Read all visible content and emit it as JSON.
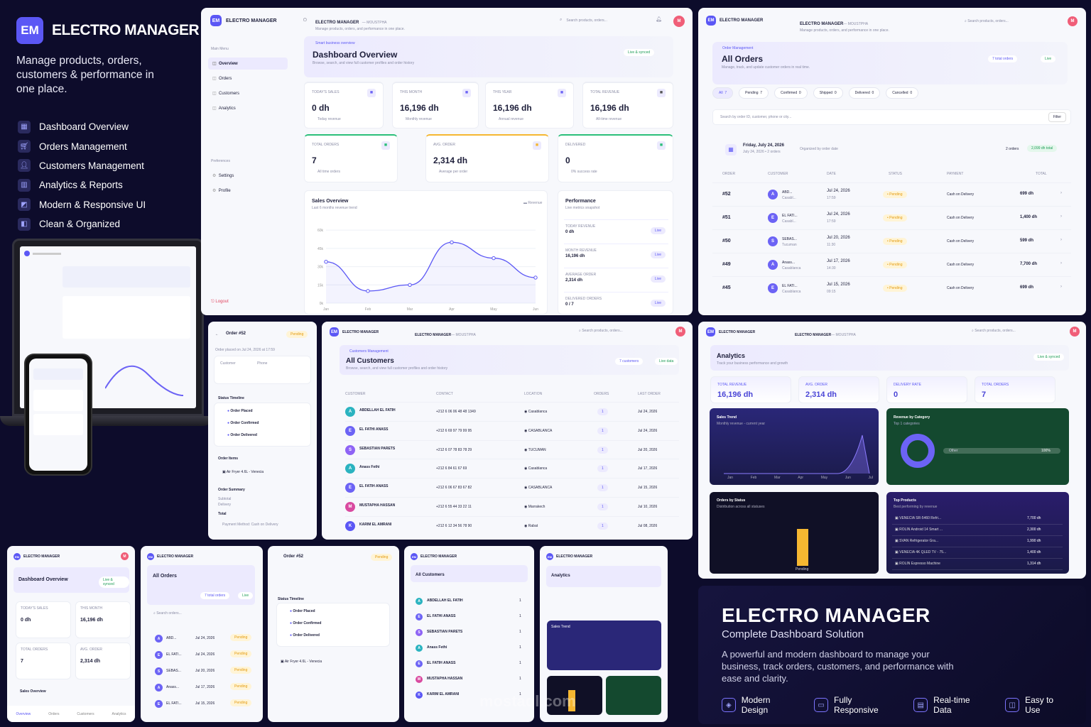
{
  "brand": {
    "logo": "EM",
    "name": "ELECTRO MANAGER",
    "tagline": "Manage products, orders, customers & performance in one place."
  },
  "features": [
    {
      "icon": "dashboard-icon",
      "label": "Dashboard Overview"
    },
    {
      "icon": "cart-icon",
      "label": "Orders Management"
    },
    {
      "icon": "users-icon",
      "label": "Customers Management"
    },
    {
      "icon": "chart-icon",
      "label": "Analytics & Reports"
    },
    {
      "icon": "monitor-icon",
      "label": "Modern & Responsive UI"
    },
    {
      "icon": "layers-icon",
      "label": "Clean & Organized"
    }
  ],
  "dashboard": {
    "app_name": "ELECTRO MANAGER",
    "user": "— MOUSTPHA",
    "subtitle": "Manage products, orders, and performance in one place.",
    "search_placeholder": "Search products, orders...",
    "avatar": "M",
    "nav_heading": "Main Menu",
    "nav": [
      "Overview",
      "Orders",
      "Customers",
      "Analytics"
    ],
    "pref_heading": "Preferences",
    "prefs": [
      "Settings",
      "Profile"
    ],
    "logout": "Logout",
    "banner_tag": "Smart business overview",
    "title": "Dashboard Overview",
    "desc": "Browse, search, and view full customer profiles and order history",
    "live": "Live & synced",
    "stats": [
      {
        "label": "TODAY'S SALES",
        "value": "0 dh",
        "sub": "Today revenue"
      },
      {
        "label": "THIS MONTH",
        "value": "16,196 dh",
        "sub": "Monthly revenue"
      },
      {
        "label": "THIS YEAR",
        "value": "16,196 dh",
        "sub": "Annual revenue"
      },
      {
        "label": "TOTAL REVENUE",
        "value": "16,196 dh",
        "sub": "All-time revenue"
      },
      {
        "label": "TOTAL ORDERS",
        "value": "7",
        "sub": "All time orders"
      },
      {
        "label": "AVG. ORDER",
        "value": "2,314 dh",
        "sub": "Average per order"
      },
      {
        "label": "DELIVERED",
        "value": "0",
        "sub": "0% success rate"
      }
    ],
    "performance": {
      "title": "Performance",
      "sub": "Live metrics snapshot",
      "items": [
        {
          "label": "TODAY REVENUE",
          "value": "0 dh"
        },
        {
          "label": "MONTH REVENUE",
          "value": "16,196 dh"
        },
        {
          "label": "AVERAGE ORDER",
          "value": "2,314 dh"
        },
        {
          "label": "DELIVERED ORDERS",
          "value": "0 / 7"
        }
      ],
      "badge": "Live"
    }
  },
  "chart_data": {
    "type": "line",
    "title": "Sales Overview",
    "subtitle": "Last 6 months revenue trend",
    "legend": "Revenue",
    "categories": [
      "Jan",
      "Feb",
      "Mar",
      "Apr",
      "May",
      "Jun"
    ],
    "values": [
      34,
      10,
      15,
      50,
      37,
      21
    ],
    "yticks": [
      "0k",
      "15k",
      "30k",
      "45k",
      "60k"
    ],
    "ylim": [
      0,
      70
    ]
  },
  "orders": {
    "tag": "Order Management",
    "title": "All Orders",
    "desc": "Manage, track, and update customer orders in real time.",
    "total_badge": "7 total orders",
    "live": "Live",
    "tabs": [
      {
        "label": "All",
        "count": "7"
      },
      {
        "label": "Pending",
        "count": "7"
      },
      {
        "label": "Confirmed",
        "count": "0"
      },
      {
        "label": "Shipped",
        "count": "0"
      },
      {
        "label": "Delivered",
        "count": "0"
      },
      {
        "label": "Cancelled",
        "count": "0"
      }
    ],
    "search_placeholder": "Search by order ID, customer, phone or city...",
    "filter": "Filter",
    "date": "Friday, July 24, 2026",
    "date_sub": "July 24, 2026 • 2 orders",
    "organized": "Organized by order date",
    "count": "2 orders",
    "total": "2,099 dh total",
    "headers": [
      "ORDER",
      "CUSTOMER",
      "DATE",
      "STATUS",
      "PAYMENT",
      "TOTAL"
    ],
    "rows": [
      {
        "id": "#52",
        "initial": "A",
        "name": "ABD...",
        "city": "Casabl...",
        "date": "Jul 24, 2026",
        "time": "17:59",
        "status": "Pending",
        "payment": "Cash on Delivery",
        "total": "699 dh"
      },
      {
        "id": "#51",
        "initial": "E",
        "name": "EL FATI...",
        "city": "Casabl...",
        "date": "Jul 24, 2026",
        "time": "17:59",
        "status": "Pending",
        "payment": "Cash on Delivery",
        "total": "1,400 dh"
      },
      {
        "id": "#50",
        "initial": "S",
        "name": "SEBAS...",
        "city": "Tucuman",
        "date": "Jul 20, 2026",
        "time": "11:30",
        "status": "Pending",
        "payment": "Cash on Delivery",
        "total": "599 dh"
      },
      {
        "id": "#49",
        "initial": "A",
        "name": "Anass...",
        "city": "Casablanca",
        "date": "Jul 17, 2026",
        "time": "14:30",
        "status": "Pending",
        "payment": "Cash on Delivery",
        "total": "7,700 dh"
      },
      {
        "id": "#45",
        "initial": "E",
        "name": "EL FATI...",
        "city": "Casablanca",
        "date": "Jul 15, 2026",
        "time": "09:15",
        "status": "Pending",
        "payment": "Cash on Delivery",
        "total": "699 dh"
      }
    ]
  },
  "order_detail": {
    "title": "Order #52",
    "status": "Pending",
    "placed": "Order placed on Jul 24, 2026 at 17:59",
    "customer_label": "Customer",
    "phone_label": "Phone",
    "timeline": "Status Timeline",
    "steps": [
      "Order Placed",
      "Order Confirmed",
      "Order Delivered"
    ],
    "items": "Order Items",
    "item": "Air Fryer 4.6L - Venecia",
    "summary": "Order Summary",
    "subtotal": "Subtotal",
    "delivery": "Delivery",
    "total": "Total",
    "payment": "Payment Method: Cash on Delivery"
  },
  "customers": {
    "tag": "Customers Management",
    "title": "All Customers",
    "desc": "Browse, search, and view full customer profiles and order history",
    "count": "7 customers",
    "live": "Live data",
    "headers": [
      "CUSTOMER",
      "CONTACT",
      "LOCATION",
      "ORDERS",
      "LAST ORDER"
    ],
    "rows": [
      {
        "i": "A",
        "name": "ABDELLAH EL FATIH",
        "phone": "+212 6 06 06 48 48 1349",
        "loc": "Casablanca",
        "orders": "1",
        "last": "Jul 24, 2026"
      },
      {
        "i": "E",
        "name": "EL FATHI ANASS",
        "phone": "+212 6 69 97 79 99 95",
        "loc": "CASABLANCA",
        "orders": "1",
        "last": "Jul 24, 2026"
      },
      {
        "i": "S",
        "name": "SEBASTIAN PARETS",
        "phone": "+212 6 07 78 83 78 29",
        "loc": "TUCUMAN",
        "orders": "1",
        "last": "Jul 20, 2026"
      },
      {
        "i": "A",
        "name": "Anass Fethi",
        "phone": "+212 6 84 61 67 69",
        "loc": "Casablanca",
        "orders": "1",
        "last": "Jul 17, 2026"
      },
      {
        "i": "E",
        "name": "EL FATIH ANASS",
        "phone": "+212 6 06 67 83 67 82",
        "loc": "CASABLANCA",
        "orders": "1",
        "last": "Jul 15, 2026"
      },
      {
        "i": "M",
        "name": "MUSTAPHA HASSAN",
        "phone": "+212 6 55 44 33 22 11",
        "loc": "Marrakech",
        "orders": "1",
        "last": "Jul 10, 2026"
      },
      {
        "i": "K",
        "name": "KARIM EL AMRANI",
        "phone": "+212 6 12 34 56 78 90",
        "loc": "Rabat",
        "orders": "1",
        "last": "Jul 08, 2026"
      }
    ]
  },
  "analytics": {
    "title": "Analytics",
    "desc": "Track your business performance and growth",
    "live": "Live & synced",
    "stats": [
      {
        "label": "TOTAL REVENUE",
        "value": "16,196 dh"
      },
      {
        "label": "AVG. ORDER",
        "value": "2,314 dh"
      },
      {
        "label": "DELIVERY RATE",
        "value": "0"
      },
      {
        "label": "TOTAL ORDERS",
        "value": "7"
      }
    ],
    "sales_trend": "Sales Trend",
    "sales_sub": "Monthly revenue - current year",
    "trend_months": [
      "Jan",
      "Feb",
      "Mar",
      "Apr",
      "May",
      "Jun",
      "Jul"
    ],
    "category": "Revenue by Category",
    "category_sub": "Top 1 categories",
    "category_item": "Other",
    "category_pct": "100%",
    "status": "Orders by Status",
    "status_sub": "Distribution across all statuses",
    "status_bar": "Pending",
    "top": "Top Products",
    "top_sub": "Best performing by revenue",
    "products": [
      {
        "name": "VENECIA SR-5460 Refri...",
        "value": "7,700 dh"
      },
      {
        "name": "ROLIN Android 14 Smart ...",
        "value": "2,300 dh"
      },
      {
        "name": "SVAN Refrigerator Gra...",
        "value": "1,990 dh"
      },
      {
        "name": "VENECIA 4K QLED TV - 75...",
        "value": "1,400 dh"
      },
      {
        "name": "ROLIN Espresso Machine",
        "value": "1,314 dh"
      }
    ]
  },
  "promo": {
    "title": "ELECTRO MANAGER",
    "subtitle": "Complete Dashboard Solution",
    "desc": "A powerful and modern dashboard to manage your business, track orders, customers, and performance with ease and clarity.",
    "features": [
      {
        "icon": "design-icon",
        "label": "Modern Design"
      },
      {
        "icon": "responsive-icon",
        "label": "Fully Responsive"
      },
      {
        "icon": "realtime-icon",
        "label": "Real-time Data"
      },
      {
        "icon": "easy-icon",
        "label": "Easy to Use"
      }
    ]
  },
  "mobile": {
    "nav": [
      "Overview",
      "Orders",
      "Customers",
      "Analytics"
    ],
    "dash_title": "Dashboard Overview",
    "orders_title": "All Orders",
    "customers_title": "All Customers",
    "analytics_title": "Analytics",
    "order_title": "Order #52",
    "search": "Search orders..."
  },
  "watermark": "mostaql.com"
}
